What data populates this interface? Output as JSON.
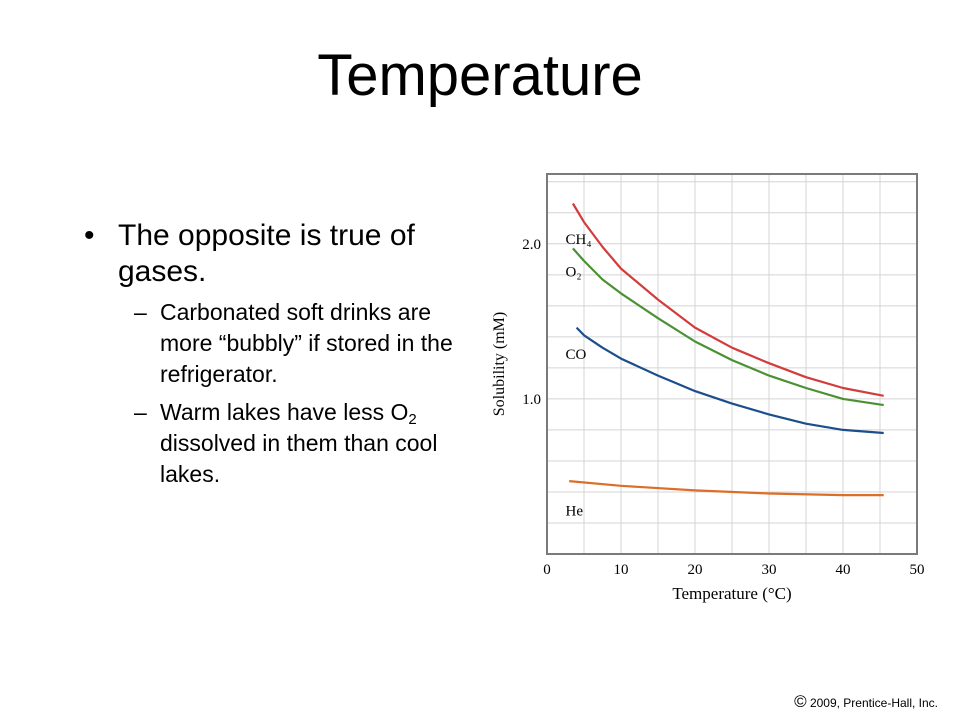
{
  "slide": {
    "title": "Temperature",
    "bullet": "The opposite is true of gases.",
    "sub1": "Carbonated soft drinks are more “bubbly” if stored in the refrigerator.",
    "sub2_before": "Warm lakes have less O",
    "sub2_subscript": "2",
    "sub2_after": " dissolved in them than cool lakes.",
    "copyright_symbol": "©",
    "copyright_text": "2009, Prentice-Hall, Inc."
  },
  "chart_data": {
    "type": "line",
    "xlabel": "Temperature (°C)",
    "ylabel": "Solubility (mM)",
    "xlim": [
      0,
      50
    ],
    "ylim": [
      0.0,
      2.45
    ],
    "xticks": [
      "0",
      "10",
      "20",
      "30",
      "40",
      "50"
    ],
    "yticks": [
      "1.0",
      "2.0"
    ],
    "grid": true,
    "series": [
      {
        "name": "CH₄",
        "color": "#d23c3c",
        "x": [
          3.5,
          5,
          7.5,
          10,
          15,
          20,
          25,
          30,
          35,
          40,
          45.5
        ],
        "y": [
          2.26,
          2.14,
          1.98,
          1.84,
          1.64,
          1.46,
          1.33,
          1.23,
          1.14,
          1.07,
          1.02
        ]
      },
      {
        "name": "O₂",
        "color": "#4b9134",
        "x": [
          3.5,
          5,
          7.5,
          10,
          15,
          20,
          25,
          30,
          35,
          40,
          45.5
        ],
        "y": [
          1.97,
          1.89,
          1.77,
          1.68,
          1.52,
          1.37,
          1.25,
          1.15,
          1.07,
          1.0,
          0.96
        ]
      },
      {
        "name": "CO",
        "color": "#1c4e8c",
        "x": [
          4,
          5,
          7.5,
          10,
          15,
          20,
          25,
          30,
          35,
          40,
          45.5
        ],
        "y": [
          1.46,
          1.41,
          1.33,
          1.26,
          1.15,
          1.05,
          0.97,
          0.9,
          0.84,
          0.8,
          0.78
        ]
      },
      {
        "name": "He",
        "color": "#dc6e28",
        "x": [
          3,
          10,
          20,
          30,
          40,
          45.5
        ],
        "y": [
          0.47,
          0.44,
          0.41,
          0.39,
          0.38,
          0.38
        ]
      }
    ]
  }
}
